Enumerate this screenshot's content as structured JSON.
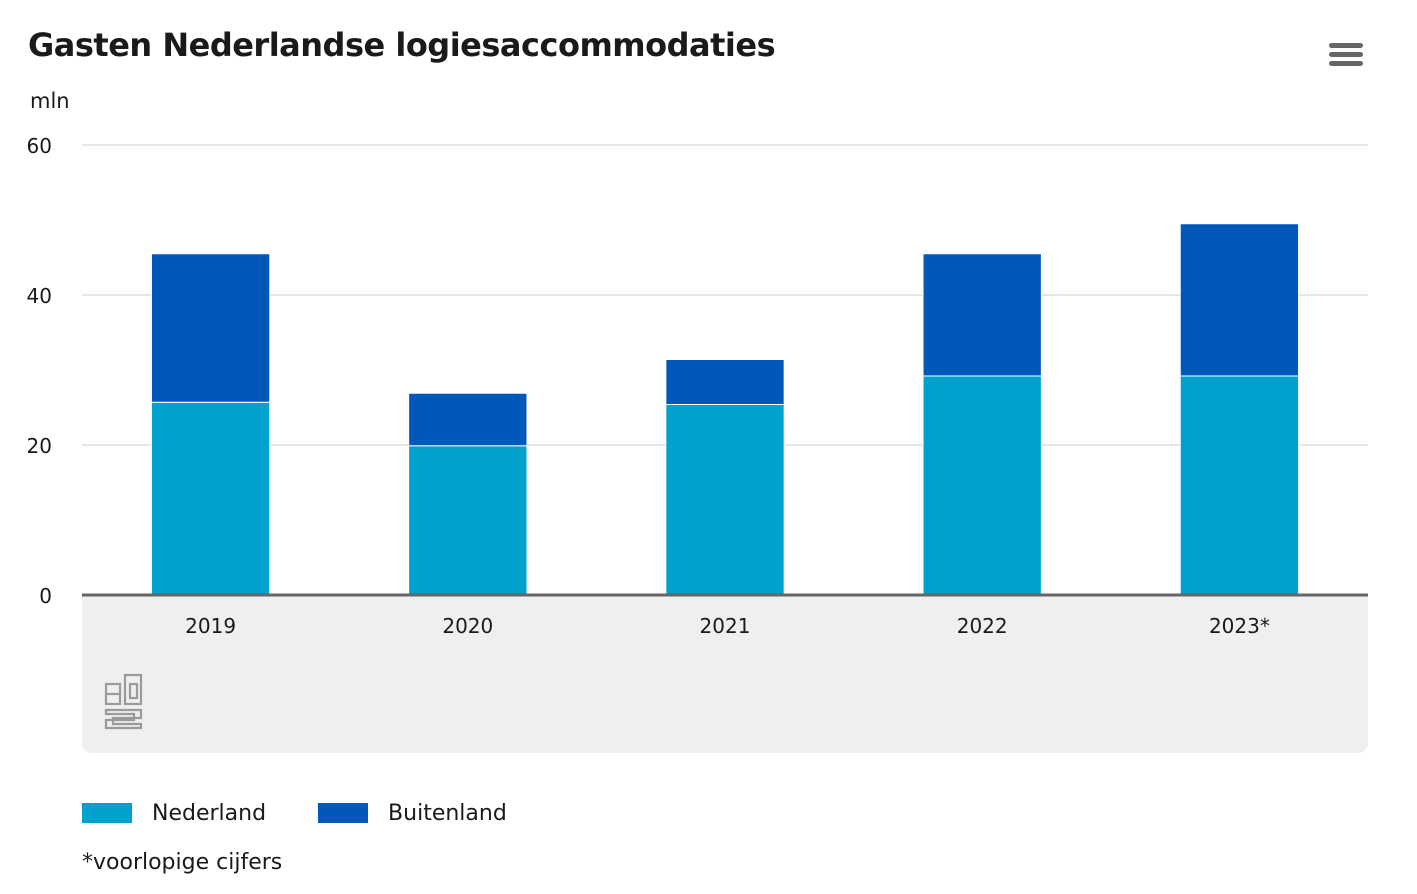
{
  "header": {
    "title": "Gasten Nederlandse logiesaccommodaties",
    "menu_icon": "hamburger-menu-icon"
  },
  "colors": {
    "nederland": "#00a1cd",
    "buitenland": "#0058b8",
    "grid": "#cccccc",
    "axis": "#666666",
    "footer_band": "#efefef",
    "text": "#1a1a1a"
  },
  "chart_data": {
    "type": "bar",
    "stacked": true,
    "title": "Gasten Nederlandse logiesaccommodaties",
    "ylabel": "mln",
    "xlabel": "",
    "ylim": [
      0,
      60
    ],
    "yticks": [
      0,
      20,
      40,
      60
    ],
    "grid": true,
    "legend_position": "bottom-left",
    "categories": [
      "2019",
      "2020",
      "2021",
      "2022",
      "2023*"
    ],
    "series": [
      {
        "name": "Nederland",
        "color": "#00a1cd",
        "values": [
          25.7,
          19.9,
          25.4,
          29.2,
          29.2
        ]
      },
      {
        "name": "Buitenland",
        "color": "#0058b8",
        "values": [
          19.8,
          7.0,
          6.0,
          16.3,
          20.3
        ]
      }
    ]
  },
  "logo": {
    "name": "cbs-logo-icon"
  },
  "footnote": "*voorlopige cijfers"
}
